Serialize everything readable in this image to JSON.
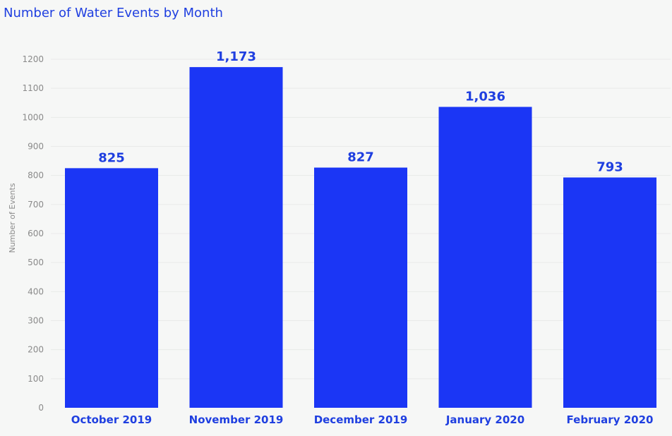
{
  "chart_data": {
    "type": "bar",
    "title": "Number of Water Events by Month",
    "xlabel": "",
    "ylabel": "Number of Events",
    "categories": [
      "October 2019",
      "November 2019",
      "December 2019",
      "January 2020",
      "February 2020"
    ],
    "values": [
      825,
      1173,
      827,
      1036,
      793
    ],
    "data_labels": [
      "825",
      "1,173",
      "827",
      "1,036",
      "793"
    ],
    "ylim": [
      0,
      1200
    ],
    "yticks": [
      0,
      100,
      200,
      300,
      400,
      500,
      600,
      700,
      800,
      900,
      1000,
      1100,
      1200
    ],
    "grid": true,
    "legend": "none",
    "bar_color": "#1b36f5",
    "text_color": "#1f3fe0"
  }
}
